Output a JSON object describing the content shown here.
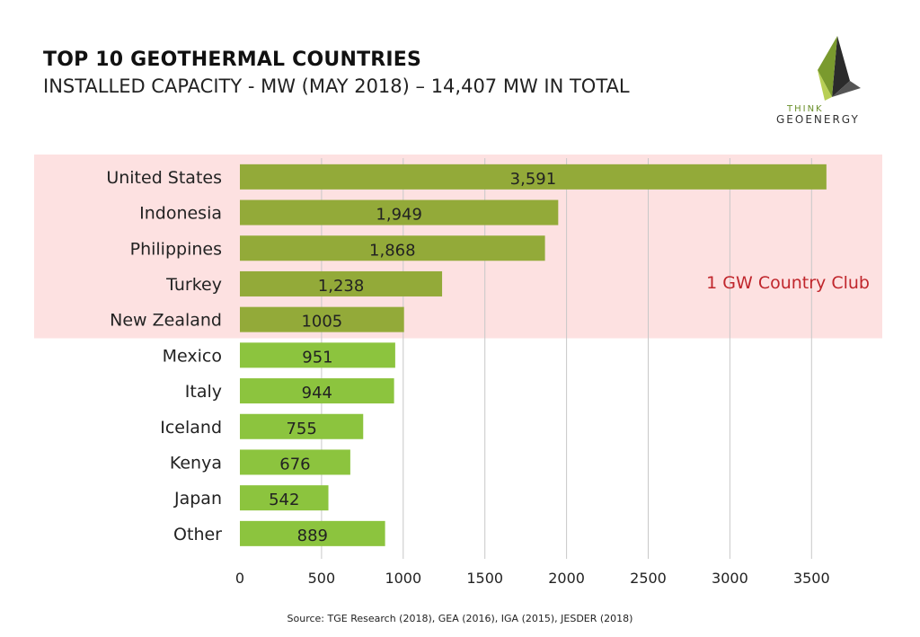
{
  "header": {
    "title": "TOP 10 GEOTHERMAL COUNTRIES",
    "subtitle": "INSTALLED CAPACITY - MW (MAY 2018) – 14,407 MW IN TOTAL"
  },
  "logo": {
    "line1": "THINK",
    "line2": "GEOENERGY",
    "icon": "think-geoenergy-logo-icon"
  },
  "source": "Source: TGE Research (2018), GEA (2016), IGA (2015), JESDER (2018)",
  "chart_data": {
    "type": "bar",
    "orientation": "horizontal",
    "categories": [
      "United States",
      "Indonesia",
      "Philippines",
      "Turkey",
      "New Zealand",
      "Mexico",
      "Italy",
      "Iceland",
      "Kenya",
      "Japan",
      "Other"
    ],
    "values": [
      3591,
      1949,
      1868,
      1238,
      1005,
      951,
      944,
      755,
      676,
      542,
      889
    ],
    "data_labels": [
      "3,591",
      "1,949",
      "1,868",
      "1,238",
      "1005",
      "951",
      "944",
      "755",
      "676",
      "542",
      "889"
    ],
    "xlim": [
      0,
      3800
    ],
    "xticks": [
      0,
      500,
      1000,
      1500,
      2000,
      2500,
      3000,
      3500
    ],
    "grid": "vertical",
    "highlight": {
      "label": "1 GW Country Club",
      "count": 5,
      "color": "#fde1e1",
      "label_color": "#c0262c"
    },
    "colors": {
      "highlight_bar": "#93aa39",
      "normal_bar": "#8cc43e",
      "grid": "#c8c8c8"
    }
  }
}
